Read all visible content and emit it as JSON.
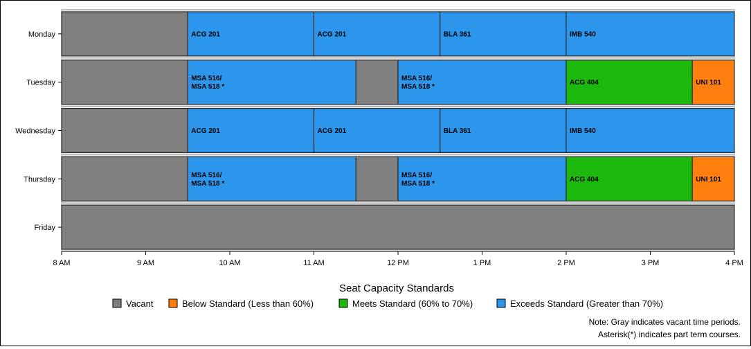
{
  "chart_data": {
    "type": "bar",
    "orientation": "horizontal-timeline",
    "categories": [
      "Monday",
      "Tuesday",
      "Wednesday",
      "Thursday",
      "Friday"
    ],
    "x_ticks": [
      "8 AM",
      "9 AM",
      "10 AM",
      "11 AM",
      "12 PM",
      "1 PM",
      "2 PM",
      "3 PM",
      "4 PM"
    ],
    "xlim": [
      8,
      16
    ],
    "grid": true,
    "legend_title": "Seat Capacity Standards",
    "legend_position": "bottom",
    "legend": [
      {
        "key": "vacant",
        "label": "Vacant",
        "color": "#808080"
      },
      {
        "key": "below",
        "label": "Below Standard (Less than 60%)",
        "color": "#ff7f0e"
      },
      {
        "key": "meets",
        "label": "Meets Standard (60% to 70%)",
        "color": "#1cb80e"
      },
      {
        "key": "exceeds",
        "label": "Exceeds Standard (Greater than 70%)",
        "color": "#2b96eb"
      }
    ],
    "schedule": [
      {
        "day": "Monday",
        "segments": [
          {
            "start": 8,
            "end": 9.5,
            "status": "vacant",
            "label": ""
          },
          {
            "start": 9.5,
            "end": 11,
            "status": "exceeds",
            "label": "ACG 201"
          },
          {
            "start": 11,
            "end": 12.5,
            "status": "exceeds",
            "label": "ACG 201"
          },
          {
            "start": 12.5,
            "end": 14,
            "status": "exceeds",
            "label": "BLA 361"
          },
          {
            "start": 14,
            "end": 16,
            "status": "exceeds",
            "label": "IMB 540"
          }
        ]
      },
      {
        "day": "Tuesday",
        "segments": [
          {
            "start": 8,
            "end": 9.5,
            "status": "vacant",
            "label": ""
          },
          {
            "start": 9.5,
            "end": 11.5,
            "status": "exceeds",
            "label": "MSA 516/\nMSA 518 *"
          },
          {
            "start": 11.5,
            "end": 12,
            "status": "vacant",
            "label": ""
          },
          {
            "start": 12,
            "end": 14,
            "status": "exceeds",
            "label": "MSA 516/\nMSA 518 *"
          },
          {
            "start": 14,
            "end": 15.5,
            "status": "meets",
            "label": "ACG 404"
          },
          {
            "start": 15.5,
            "end": 16,
            "status": "below",
            "label": "UNI 101"
          }
        ]
      },
      {
        "day": "Wednesday",
        "segments": [
          {
            "start": 8,
            "end": 9.5,
            "status": "vacant",
            "label": ""
          },
          {
            "start": 9.5,
            "end": 11,
            "status": "exceeds",
            "label": "ACG 201"
          },
          {
            "start": 11,
            "end": 12.5,
            "status": "exceeds",
            "label": "ACG 201"
          },
          {
            "start": 12.5,
            "end": 14,
            "status": "exceeds",
            "label": "BLA 361"
          },
          {
            "start": 14,
            "end": 16,
            "status": "exceeds",
            "label": "IMB 540"
          }
        ]
      },
      {
        "day": "Thursday",
        "segments": [
          {
            "start": 8,
            "end": 9.5,
            "status": "vacant",
            "label": ""
          },
          {
            "start": 9.5,
            "end": 11.5,
            "status": "exceeds",
            "label": "MSA 516/\nMSA 518 *"
          },
          {
            "start": 11.5,
            "end": 12,
            "status": "vacant",
            "label": ""
          },
          {
            "start": 12,
            "end": 14,
            "status": "exceeds",
            "label": "MSA 516/\nMSA 518 *"
          },
          {
            "start": 14,
            "end": 15.5,
            "status": "meets",
            "label": "ACG 404"
          },
          {
            "start": 15.5,
            "end": 16,
            "status": "below",
            "label": "UNI 101"
          }
        ]
      },
      {
        "day": "Friday",
        "segments": [
          {
            "start": 8,
            "end": 16,
            "status": "vacant",
            "label": ""
          }
        ]
      }
    ],
    "notes": [
      "Note: Gray indicates vacant time periods.",
      "Asterisk(*) indicates part term courses."
    ]
  }
}
